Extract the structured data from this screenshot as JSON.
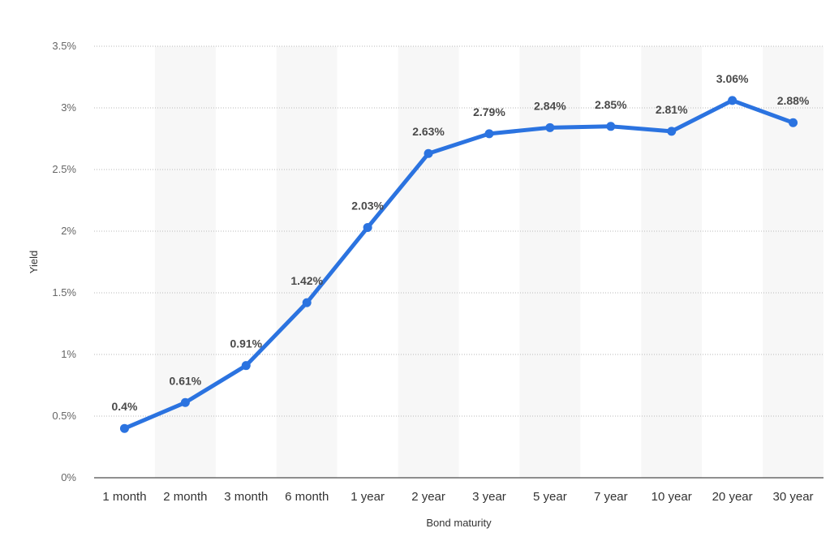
{
  "chart_data": {
    "type": "line",
    "title": "",
    "xlabel": "Bond maturity",
    "ylabel": "Yield",
    "categories": [
      "1 month",
      "2 month",
      "3 month",
      "6 month",
      "1 year",
      "2 year",
      "3 year",
      "5 year",
      "7 year",
      "10 year",
      "20 year",
      "30 year"
    ],
    "values": [
      0.4,
      0.61,
      0.91,
      1.42,
      2.03,
      2.63,
      2.79,
      2.84,
      2.85,
      2.81,
      3.06,
      2.88
    ],
    "data_labels": [
      "0.4%",
      "0.61%",
      "0.91%",
      "1.42%",
      "2.03%",
      "2.63%",
      "2.79%",
      "2.84%",
      "2.85%",
      "2.81%",
      "3.06%",
      "2.88%"
    ],
    "ylim": [
      0,
      3.5
    ],
    "yticks": [
      0,
      0.5,
      1,
      1.5,
      2,
      2.5,
      3,
      3.5
    ],
    "ytick_labels": [
      "0%",
      "0.5%",
      "1%",
      "1.5%",
      "2%",
      "2.5%",
      "3%",
      "3.5%"
    ],
    "grid": true,
    "alternating_column_bands": true,
    "line_color": "#2b73e0",
    "band_color": "#f7f7f7",
    "grid_color": "#b8b8b8",
    "axis_color": "#222222"
  }
}
